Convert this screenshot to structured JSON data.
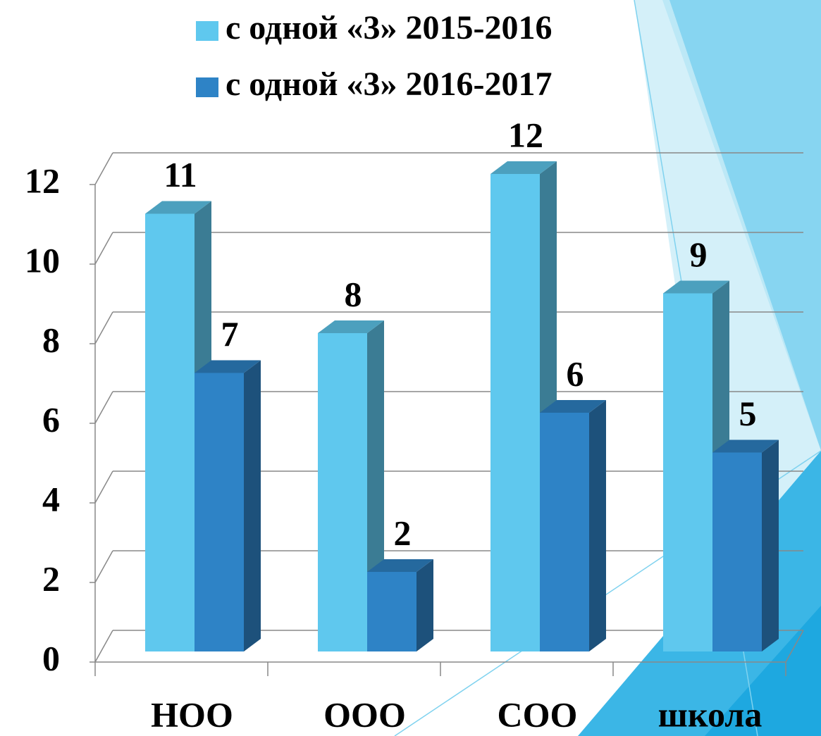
{
  "chart_data": {
    "type": "bar3d",
    "categories": [
      "НОО",
      "ООО",
      "СОО",
      "школа"
    ],
    "series": [
      {
        "name": "с одной «3» 2015-2016",
        "color": "#5fc8ee",
        "values": [
          11,
          8,
          12,
          9
        ]
      },
      {
        "name": "с одной «3» 2016-2017",
        "color": "#2e83c6",
        "values": [
          7,
          2,
          6,
          5
        ]
      }
    ],
    "ylim": [
      0,
      12
    ],
    "yticks": [
      0,
      2,
      4,
      6,
      8,
      10,
      12
    ],
    "grid": true
  }
}
